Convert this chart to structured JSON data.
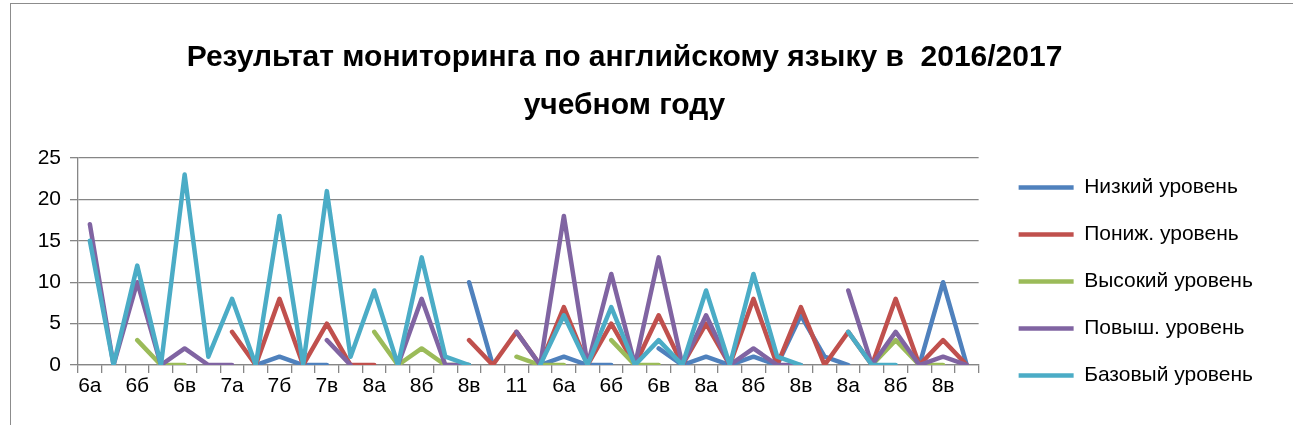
{
  "chart_data": {
    "type": "line",
    "title": "Результат мониторинга по английскому языку в  2016/2017 учебном году",
    "categories": [
      "6а",
      null,
      "6б",
      null,
      "6в",
      null,
      "7а",
      null,
      "7б",
      null,
      "7в",
      null,
      "8а",
      null,
      "8б",
      null,
      "8в",
      null,
      "11",
      null,
      "6а",
      null,
      "6б",
      null,
      "6в",
      null,
      "8а",
      null,
      "8б",
      null,
      "8в",
      null,
      "8а",
      null,
      "8б",
      null,
      "8в",
      null
    ],
    "series": [
      {
        "name": "Низкий уровень",
        "color": "#4f81bd",
        "values": [
          null,
          null,
          null,
          null,
          null,
          null,
          null,
          0,
          1,
          0,
          0,
          null,
          null,
          null,
          null,
          null,
          10,
          0,
          null,
          0,
          1,
          0,
          0,
          null,
          2,
          0,
          1,
          0,
          1,
          0,
          6,
          1,
          0,
          null,
          null,
          0,
          10,
          0
        ]
      },
      {
        "name": "Пониж. уровень",
        "color": "#c0504d",
        "values": [
          null,
          null,
          null,
          null,
          null,
          null,
          4,
          0,
          8,
          0,
          5,
          0,
          0,
          null,
          null,
          null,
          3,
          0,
          4,
          0,
          7,
          0,
          5,
          0,
          6,
          0,
          5,
          0,
          8,
          0,
          7,
          0,
          4,
          0,
          8,
          0,
          3,
          0
        ]
      },
      {
        "name": "Высокий уровень",
        "color": "#9bbb59",
        "values": [
          null,
          null,
          3,
          0,
          0,
          null,
          null,
          null,
          null,
          null,
          null,
          null,
          4,
          0,
          2,
          0,
          0,
          null,
          1,
          0,
          0,
          null,
          3,
          0,
          0,
          null,
          null,
          null,
          null,
          null,
          null,
          null,
          null,
          0,
          3,
          0,
          0,
          null
        ]
      },
      {
        "name": "Повыш. уровень",
        "color": "#8064a2",
        "values": [
          17,
          0,
          10,
          0,
          2,
          0,
          0,
          null,
          null,
          null,
          3,
          0,
          null,
          0,
          8,
          0,
          0,
          null,
          4,
          0,
          18,
          0,
          11,
          0,
          13,
          0,
          6,
          0,
          2,
          0,
          0,
          null,
          9,
          0,
          4,
          0,
          1,
          0
        ]
      },
      {
        "name": "Базовый уровень",
        "color": "#4bacc6",
        "values": [
          15,
          0,
          12,
          0,
          23,
          1,
          8,
          0,
          18,
          0,
          21,
          1,
          9,
          0,
          13,
          1,
          0,
          null,
          null,
          0,
          6,
          0,
          7,
          0,
          3,
          0,
          9,
          0,
          11,
          1,
          0,
          null,
          4,
          0,
          0,
          null,
          null,
          null
        ]
      }
    ],
    "ylim": [
      0,
      25
    ],
    "yticks": [
      0,
      5,
      10,
      15,
      20,
      25
    ],
    "grid": "y",
    "legend": "right",
    "marker": "none",
    "line_style": "solid"
  }
}
